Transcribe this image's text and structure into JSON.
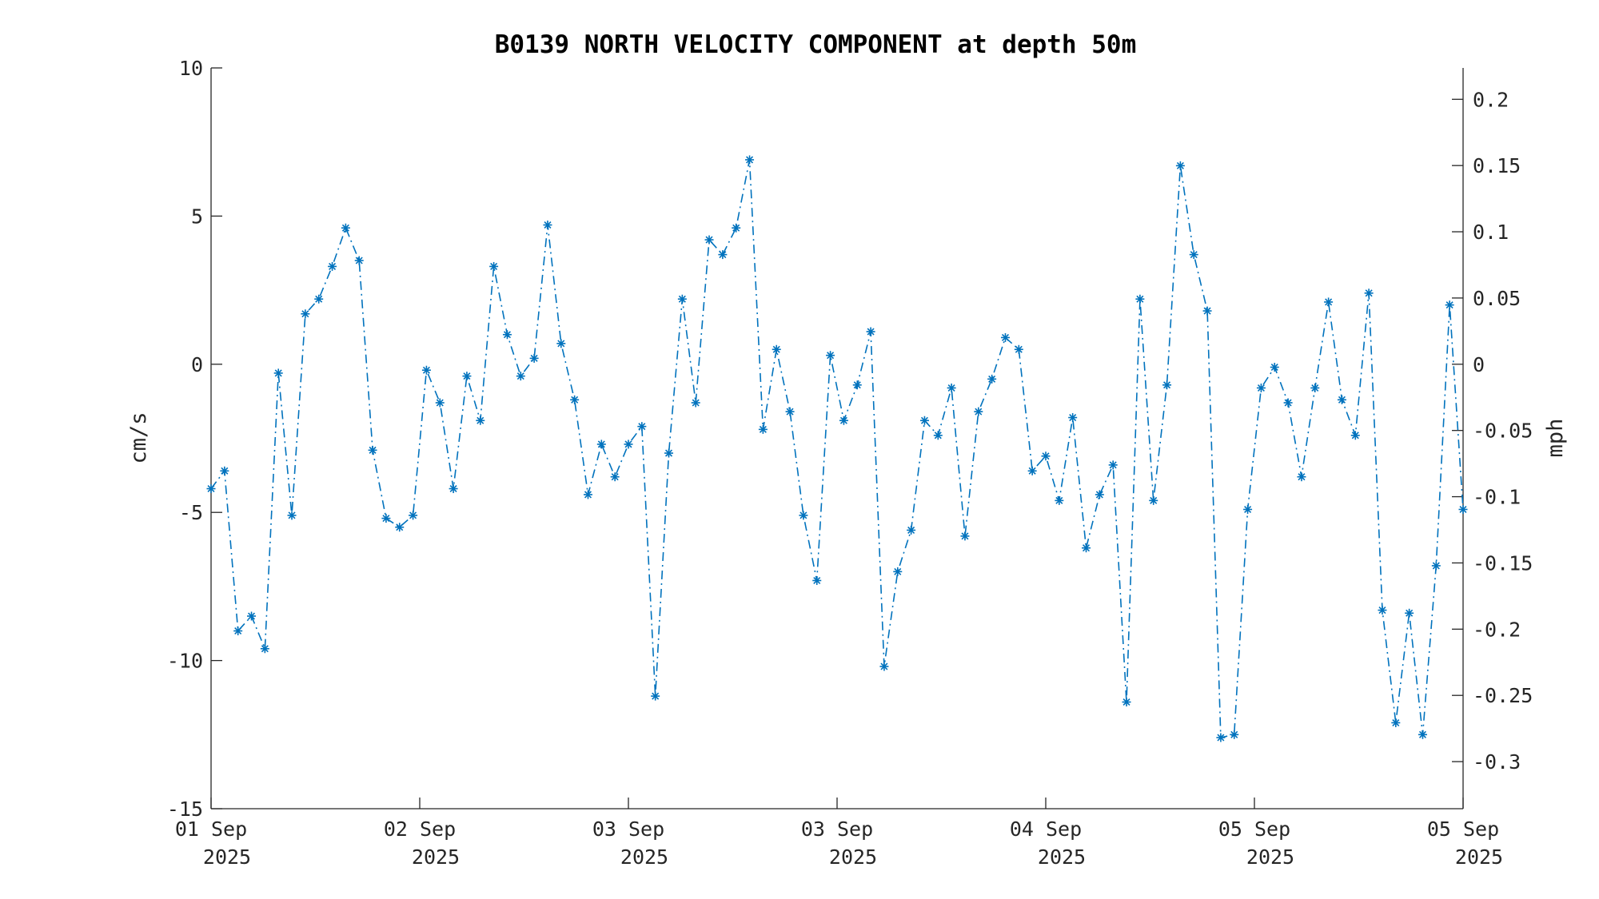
{
  "chart_data": {
    "type": "line",
    "title": "B0139 NORTH VELOCITY COMPONENT at depth 50m",
    "ylabel": "cm/s",
    "y2label": "mph",
    "ylim": [
      -15,
      10
    ],
    "yticks": [
      -15,
      -10,
      -5,
      0,
      5,
      10
    ],
    "y2ticks": [
      0.2,
      0.15,
      0.1,
      0.05,
      0,
      -0.05,
      -0.1,
      -0.15,
      -0.2,
      -0.25,
      -0.3
    ],
    "y2_scale_factor": 0.0223694,
    "xlim": [
      0,
      6
    ],
    "xticks": [
      {
        "x": 0,
        "line1": "01 Sep",
        "line2": "2025"
      },
      {
        "x": 1,
        "line1": "02 Sep",
        "line2": "2025"
      },
      {
        "x": 2,
        "line1": "03 Sep",
        "line2": "2025"
      },
      {
        "x": 3,
        "line1": "03 Sep",
        "line2": "2025"
      },
      {
        "x": 4,
        "line1": "04 Sep",
        "line2": "2025"
      },
      {
        "x": 5,
        "line1": "05 Sep",
        "line2": "2025"
      },
      {
        "x": 6,
        "line1": "05 Sep",
        "line2": "2025"
      }
    ],
    "series_color": "#0072BD",
    "grid": false,
    "series": [
      {
        "marker": "asterisk",
        "line_style": "dash-dot",
        "values": [
          -4.2,
          -3.6,
          -9.0,
          -8.5,
          -9.6,
          -0.3,
          -5.1,
          1.7,
          2.2,
          3.3,
          4.6,
          3.5,
          -2.9,
          -5.2,
          -5.5,
          -5.1,
          -0.2,
          -1.3,
          -4.2,
          -0.4,
          -1.9,
          3.3,
          1.0,
          -0.4,
          0.2,
          4.7,
          0.7,
          -1.2,
          -4.4,
          -2.7,
          -3.8,
          -2.7,
          -2.1,
          -11.2,
          -3.0,
          2.2,
          -1.3,
          4.2,
          3.7,
          4.6,
          6.9,
          -2.2,
          0.5,
          -1.6,
          -5.1,
          -7.3,
          0.3,
          -1.9,
          -0.7,
          1.1,
          -10.2,
          -7.0,
          -5.6,
          -1.9,
          -2.4,
          -0.8,
          -5.8,
          -1.6,
          -0.5,
          0.9,
          0.5,
          -3.6,
          -3.1,
          -4.6,
          -1.8,
          -6.2,
          -4.4,
          -3.4,
          -11.4,
          2.2,
          -4.6,
          -0.7,
          6.7,
          3.7,
          1.8,
          -12.6,
          -12.5,
          -4.9,
          -0.8,
          -0.1,
          -1.3,
          -3.8,
          -0.8,
          2.1,
          -1.2,
          -2.4,
          2.4,
          -8.3,
          -12.1,
          -8.4,
          -12.5,
          -6.8,
          2.0,
          -4.9
        ]
      }
    ]
  }
}
